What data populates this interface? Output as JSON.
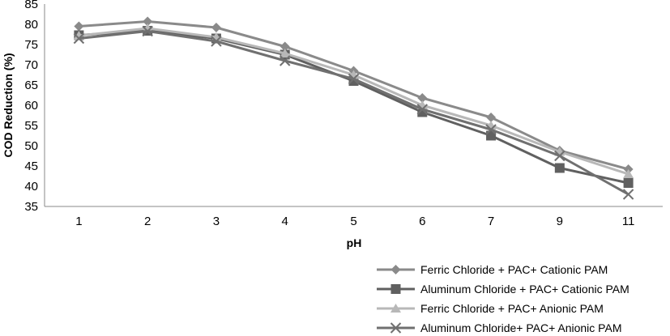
{
  "chart_data": {
    "type": "line",
    "title": "",
    "xlabel": "pH",
    "ylabel": "COD Reduction (%)",
    "categories": [
      "1",
      "2",
      "3",
      "4",
      "5",
      "6",
      "7",
      "9",
      "11"
    ],
    "yticks": [
      "35",
      "40",
      "45",
      "50",
      "55",
      "60",
      "65",
      "70",
      "75",
      "80",
      "85"
    ],
    "ylim": [
      35,
      85
    ],
    "grid": false,
    "legend_position": "bottom-right",
    "series": [
      {
        "name": "Ferric Chloride + PAC+ Cationic PAM",
        "marker": "diamond",
        "color": "#8a8a8a",
        "values": [
          79.5,
          80.7,
          79.2,
          74.5,
          68.5,
          61.8,
          57.0,
          48.8,
          44.2
        ]
      },
      {
        "name": "Aluminum Chloride + PAC+ Cationic PAM",
        "marker": "square",
        "color": "#606060",
        "values": [
          77.3,
          78.4,
          76.5,
          72.5,
          66.0,
          58.3,
          52.5,
          44.5,
          40.8
        ]
      },
      {
        "name": "Ferric Chloride + PAC+ Anionic PAM",
        "marker": "triangle",
        "color": "#b8b8b8",
        "values": [
          77.2,
          79.0,
          76.8,
          72.8,
          67.5,
          60.0,
          55.0,
          48.5,
          43.0
        ]
      },
      {
        "name": "Aluminum Chloride+ PAC+ Anionic PAM",
        "marker": "x",
        "color": "#707070",
        "values": [
          76.5,
          78.3,
          75.8,
          71.0,
          66.5,
          59.0,
          54.0,
          47.5,
          38.0
        ]
      }
    ]
  }
}
